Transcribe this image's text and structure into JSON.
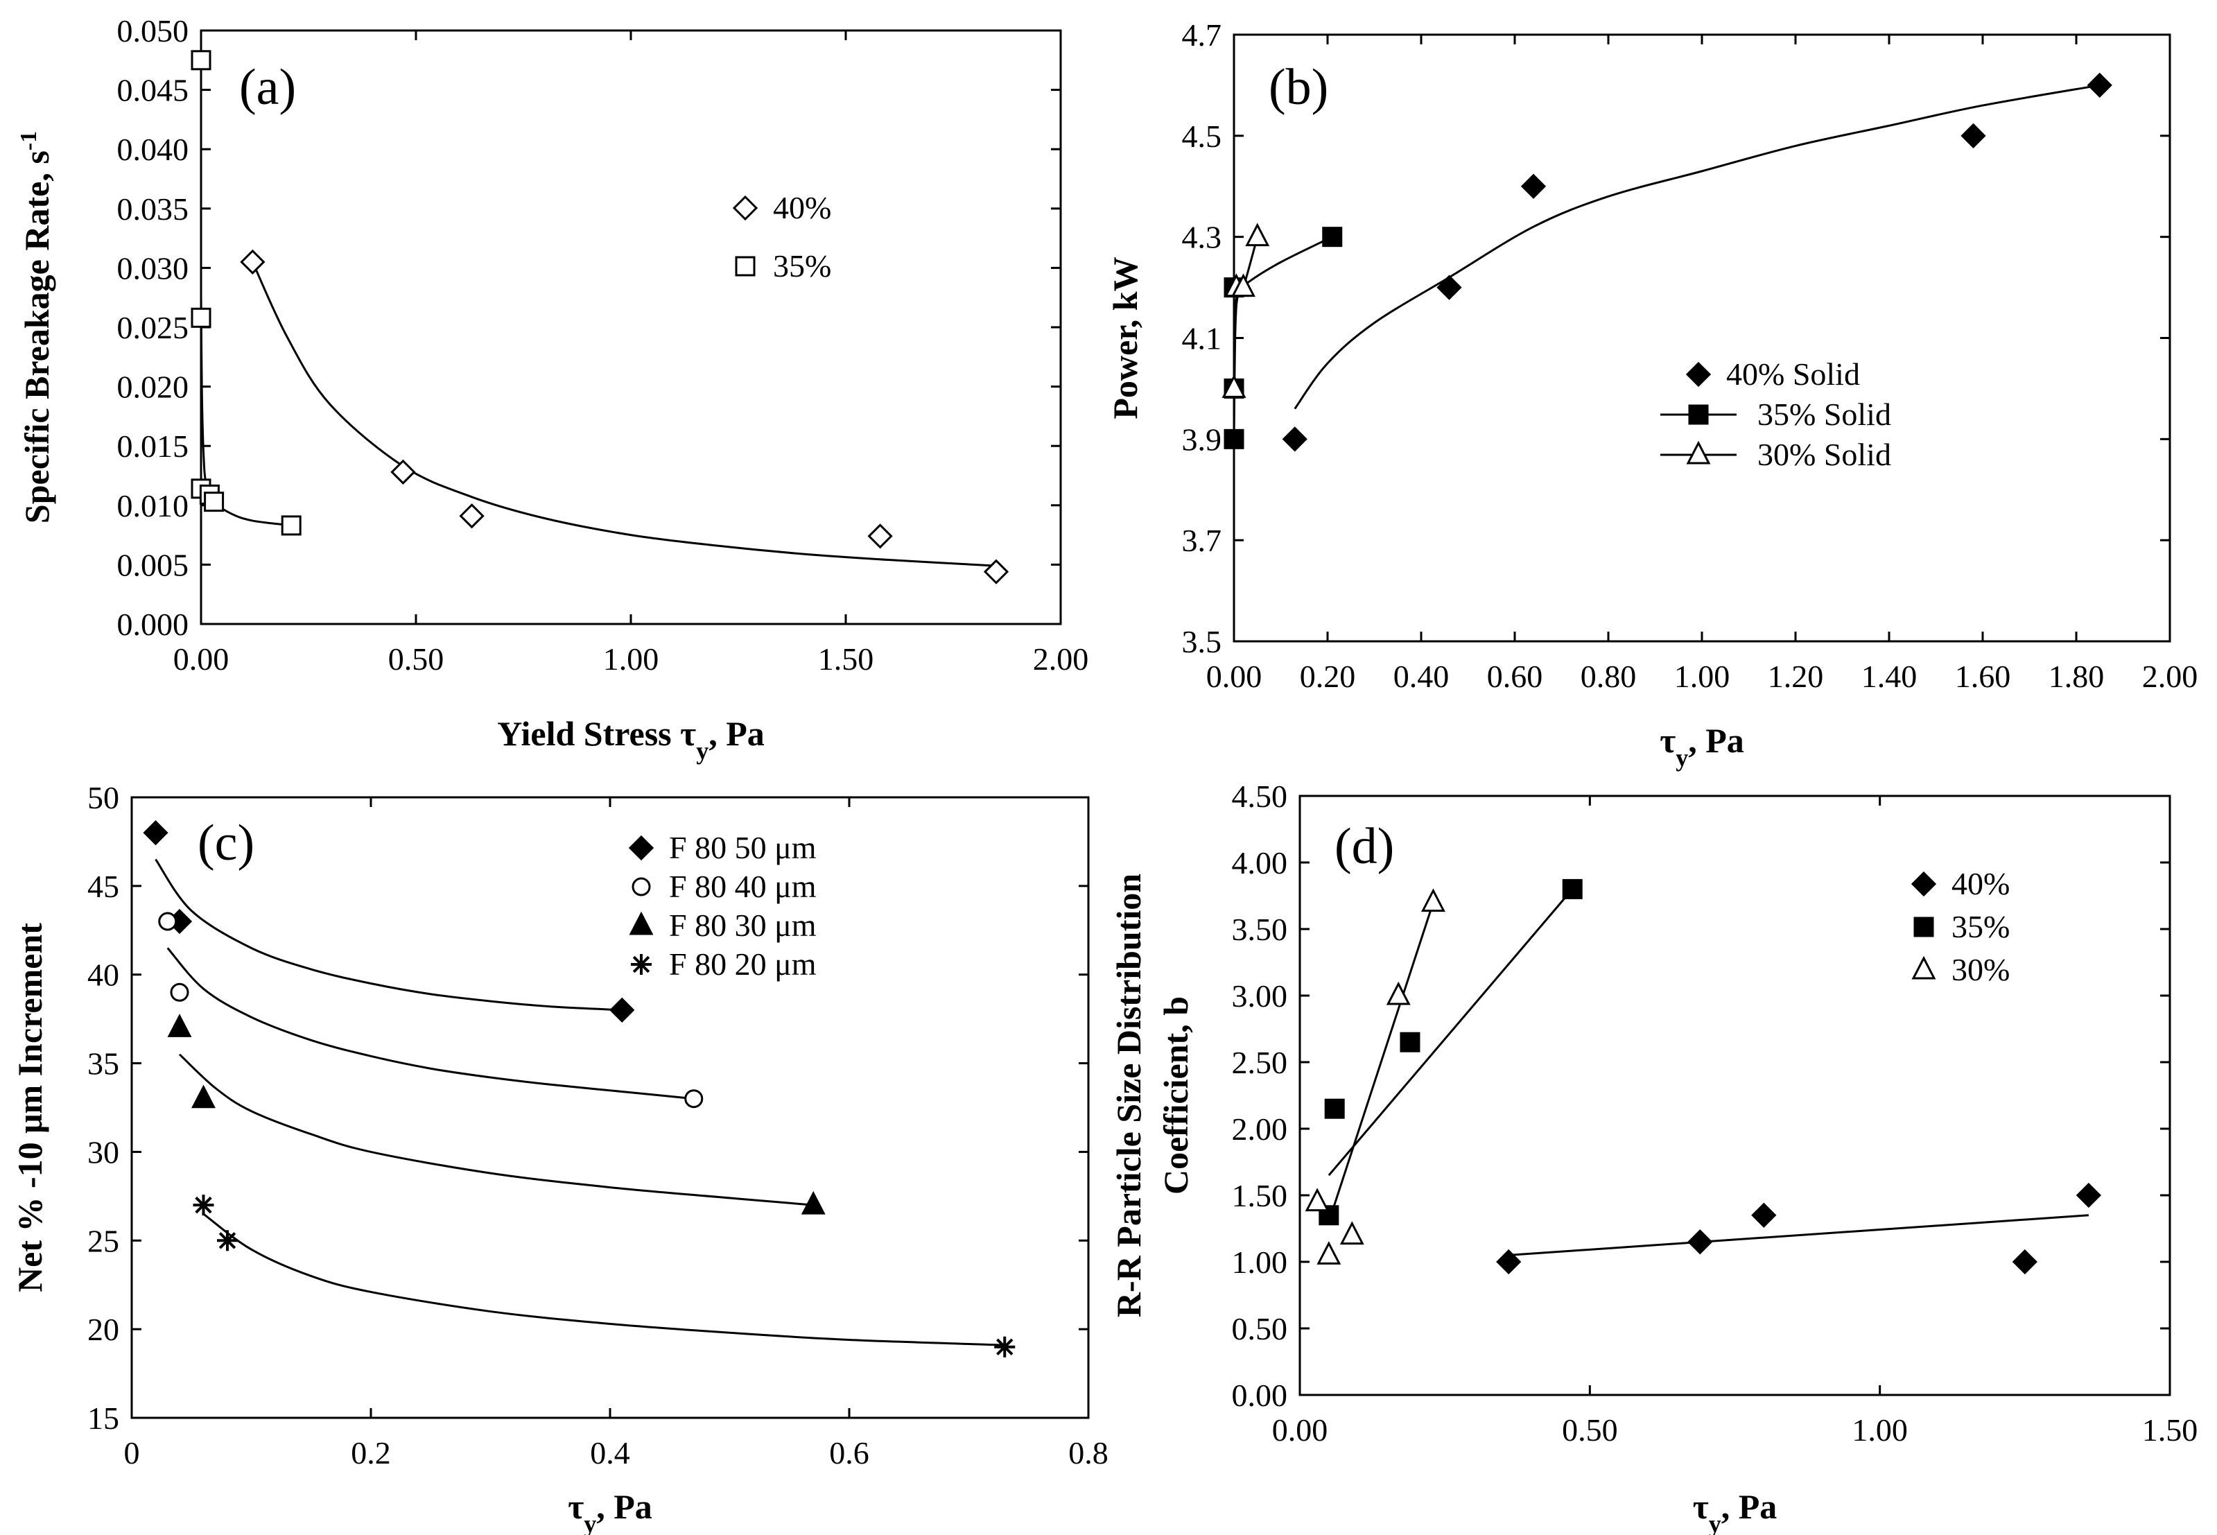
{
  "chart_data": [
    {
      "id": "a",
      "type": "scatter",
      "panel_label": "(a)",
      "xlabel_main": "Yield Stress τ",
      "xlabel_sub": "y",
      "xlabel_tail": ", Pa",
      "ylabel_main": "Specific Breakage Rate, s",
      "ylabel_sup": "-1",
      "xlim": [
        0,
        2.0
      ],
      "ylim": [
        0,
        0.05
      ],
      "xticks": [
        0,
        0.5,
        1.0,
        1.5,
        2.0
      ],
      "xtick_labels": [
        "0.00",
        "0.50",
        "1.00",
        "1.50",
        "2.00"
      ],
      "yticks": [
        0,
        0.005,
        0.01,
        0.015,
        0.02,
        0.025,
        0.03,
        0.035,
        0.04,
        0.045,
        0.05
      ],
      "ytick_labels": [
        "0.000",
        "0.005",
        "0.010",
        "0.015",
        "0.020",
        "0.025",
        "0.030",
        "0.035",
        "0.040",
        "0.045",
        "0.050"
      ],
      "legend_position": "upper-right",
      "series": [
        {
          "name": "40%",
          "marker": "diamond-open",
          "points": [
            [
              0.12,
              0.0305
            ],
            [
              0.47,
              0.0128
            ],
            [
              0.63,
              0.0091
            ],
            [
              1.58,
              0.0074
            ],
            [
              1.85,
              0.0044
            ]
          ],
          "curve": [
            [
              0.12,
              0.0305
            ],
            [
              0.2,
              0.0242
            ],
            [
              0.3,
              0.0185
            ],
            [
              0.47,
              0.0133
            ],
            [
              0.63,
              0.0107
            ],
            [
              0.8,
              0.0089
            ],
            [
              1.0,
              0.0075
            ],
            [
              1.2,
              0.0066
            ],
            [
              1.4,
              0.0059
            ],
            [
              1.6,
              0.0054
            ],
            [
              1.85,
              0.0049
            ]
          ]
        },
        {
          "name": "35%",
          "marker": "square-open",
          "points": [
            [
              0.0,
              0.0475
            ],
            [
              0.0,
              0.0258
            ],
            [
              0.0,
              0.0114
            ],
            [
              0.02,
              0.0109
            ],
            [
              0.03,
              0.0103
            ],
            [
              0.21,
              0.0083
            ]
          ],
          "curve": [
            [
              0.0,
              0.0278
            ],
            [
              0.002,
              0.0195
            ],
            [
              0.006,
              0.0142
            ],
            [
              0.012,
              0.0118
            ],
            [
              0.03,
              0.0103
            ],
            [
              0.07,
              0.0093
            ],
            [
              0.12,
              0.0087
            ],
            [
              0.21,
              0.0083
            ]
          ]
        }
      ]
    },
    {
      "id": "b",
      "type": "scatter",
      "panel_label": "(b)",
      "xlabel_main": "τ",
      "xlabel_sub": "y",
      "xlabel_tail": ", Pa",
      "ylabel_main": "Power, kW",
      "xlim": [
        0,
        2.0
      ],
      "ylim": [
        3.5,
        4.7
      ],
      "xticks": [
        0,
        0.2,
        0.4,
        0.6,
        0.8,
        1.0,
        1.2,
        1.4,
        1.6,
        1.8,
        2.0
      ],
      "xtick_labels": [
        "0.00",
        "0.20",
        "0.40",
        "0.60",
        "0.80",
        "1.00",
        "1.20",
        "1.40",
        "1.60",
        "1.80",
        "2.00"
      ],
      "yticks": [
        3.5,
        3.7,
        3.9,
        4.1,
        4.3,
        4.5,
        4.7
      ],
      "ytick_labels": [
        "3.5",
        "3.7",
        "3.9",
        "4.1",
        "4.3",
        "4.5",
        "4.7"
      ],
      "legend_position": "center-right",
      "series": [
        {
          "name": "40% Solid",
          "marker": "diamond-filled",
          "legend_line": false,
          "points": [
            [
              0.13,
              3.9
            ],
            [
              0.46,
              4.2
            ],
            [
              0.64,
              4.4
            ],
            [
              1.58,
              4.5
            ],
            [
              1.85,
              4.6
            ]
          ],
          "curve": [
            [
              0.13,
              3.96
            ],
            [
              0.2,
              4.05
            ],
            [
              0.3,
              4.13
            ],
            [
              0.46,
              4.22
            ],
            [
              0.64,
              4.32
            ],
            [
              0.8,
              4.38
            ],
            [
              1.0,
              4.43
            ],
            [
              1.2,
              4.48
            ],
            [
              1.4,
              4.52
            ],
            [
              1.6,
              4.56
            ],
            [
              1.85,
              4.6
            ]
          ]
        },
        {
          "name": "35% Solid",
          "marker": "square-filled",
          "legend_line": true,
          "points": [
            [
              0.0,
              3.9
            ],
            [
              0.0,
              4.0
            ],
            [
              0.0,
              4.2
            ],
            [
              0.21,
              4.3
            ]
          ],
          "curve": [
            [
              0.0,
              3.9
            ],
            [
              0.003,
              4.12
            ],
            [
              0.01,
              4.19
            ],
            [
              0.03,
              4.21
            ],
            [
              0.1,
              4.25
            ],
            [
              0.21,
              4.3
            ]
          ]
        },
        {
          "name": "30% Solid",
          "marker": "triangle-open",
          "legend_line": true,
          "points": [
            [
              0.0,
              4.0
            ],
            [
              0.005,
              4.2
            ],
            [
              0.02,
              4.2
            ],
            [
              0.05,
              4.3
            ]
          ],
          "curve": [
            [
              0.0,
              4.0
            ],
            [
              0.004,
              4.17
            ],
            [
              0.02,
              4.2
            ],
            [
              0.05,
              4.3
            ]
          ]
        }
      ]
    },
    {
      "id": "c",
      "type": "scatter",
      "panel_label": "(c)",
      "xlabel_main": "τ",
      "xlabel_sub": "y",
      "xlabel_tail": ", Pa",
      "ylabel_main": "Net % -10 μm Increment",
      "xlim": [
        0,
        0.8
      ],
      "ylim": [
        15,
        50
      ],
      "xticks": [
        0,
        0.2,
        0.4,
        0.6,
        0.8
      ],
      "xtick_labels": [
        "0",
        "0.2",
        "0.4",
        "0.6",
        "0.8"
      ],
      "yticks": [
        15,
        20,
        25,
        30,
        35,
        40,
        45,
        50
      ],
      "ytick_labels": [
        "15",
        "20",
        "25",
        "30",
        "35",
        "40",
        "45",
        "50"
      ],
      "legend_position": "upper-right",
      "series": [
        {
          "name": "F 80 50 μm",
          "marker": "diamond-filled",
          "points": [
            [
              0.02,
              48
            ],
            [
              0.04,
              43
            ],
            [
              0.41,
              38
            ]
          ],
          "curve": [
            [
              0.02,
              46.5
            ],
            [
              0.05,
              43.6
            ],
            [
              0.1,
              41.5
            ],
            [
              0.15,
              40.3
            ],
            [
              0.2,
              39.5
            ],
            [
              0.25,
              38.9
            ],
            [
              0.3,
              38.5
            ],
            [
              0.35,
              38.2
            ],
            [
              0.41,
              38
            ]
          ]
        },
        {
          "name": "F 80 40 μm",
          "marker": "circle-open",
          "points": [
            [
              0.03,
              43
            ],
            [
              0.04,
              39
            ],
            [
              0.47,
              33
            ]
          ],
          "curve": [
            [
              0.03,
              41.5
            ],
            [
              0.06,
              39.2
            ],
            [
              0.1,
              37.6
            ],
            [
              0.15,
              36.3
            ],
            [
              0.2,
              35.4
            ],
            [
              0.25,
              34.7
            ],
            [
              0.3,
              34.2
            ],
            [
              0.35,
              33.8
            ],
            [
              0.41,
              33.4
            ],
            [
              0.47,
              33
            ]
          ]
        },
        {
          "name": "F 80 30 μm",
          "marker": "triangle-filled",
          "points": [
            [
              0.04,
              37
            ],
            [
              0.06,
              33
            ],
            [
              0.57,
              27
            ]
          ],
          "curve": [
            [
              0.04,
              35.5
            ],
            [
              0.07,
              33.6
            ],
            [
              0.1,
              32.3
            ],
            [
              0.15,
              31
            ],
            [
              0.2,
              30
            ],
            [
              0.3,
              28.8
            ],
            [
              0.4,
              28
            ],
            [
              0.5,
              27.4
            ],
            [
              0.57,
              27
            ]
          ]
        },
        {
          "name": "F 80 20 μm",
          "marker": "star",
          "points": [
            [
              0.06,
              27
            ],
            [
              0.08,
              25
            ],
            [
              0.73,
              19
            ]
          ],
          "curve": [
            [
              0.06,
              26.5
            ],
            [
              0.1,
              24.5
            ],
            [
              0.15,
              23
            ],
            [
              0.2,
              22.1
            ],
            [
              0.3,
              21
            ],
            [
              0.4,
              20.3
            ],
            [
              0.5,
              19.8
            ],
            [
              0.6,
              19.4
            ],
            [
              0.73,
              19.1
            ]
          ]
        }
      ]
    },
    {
      "id": "d",
      "type": "scatter",
      "panel_label": "(d)",
      "xlabel_main": "τ",
      "xlabel_sub": "y",
      "xlabel_tail": ", Pa",
      "ylabel_main": "R-R Particle Size Distribution",
      "ylabel_line2": "Coefficient, b",
      "xlim": [
        0,
        1.5
      ],
      "ylim": [
        0,
        4.5
      ],
      "xticks": [
        0,
        0.5,
        1.0,
        1.5
      ],
      "xtick_labels": [
        "0.00",
        "0.50",
        "1.00",
        "1.50"
      ],
      "yticks": [
        0,
        0.5,
        1.0,
        1.5,
        2.0,
        2.5,
        3.0,
        3.5,
        4.0,
        4.5
      ],
      "ytick_labels": [
        "0.00",
        "0.50",
        "1.00",
        "1.50",
        "2.00",
        "2.50",
        "3.00",
        "3.50",
        "4.00",
        "4.50"
      ],
      "legend_position": "upper-right",
      "series": [
        {
          "name": "40%",
          "marker": "diamond-filled",
          "points": [
            [
              0.36,
              1.0
            ],
            [
              0.69,
              1.15
            ],
            [
              0.8,
              1.35
            ],
            [
              1.25,
              1.0
            ],
            [
              1.36,
              1.5
            ]
          ],
          "curve": [
            [
              0.36,
              1.05
            ],
            [
              1.36,
              1.35
            ]
          ]
        },
        {
          "name": "35%",
          "marker": "square-filled",
          "points": [
            [
              0.05,
              1.35
            ],
            [
              0.06,
              2.15
            ],
            [
              0.19,
              2.65
            ],
            [
              0.47,
              3.8
            ]
          ],
          "curve": [
            [
              0.05,
              1.65
            ],
            [
              0.47,
              3.8
            ]
          ]
        },
        {
          "name": "30%",
          "marker": "triangle-open",
          "points": [
            [
              0.03,
              1.45
            ],
            [
              0.05,
              1.05
            ],
            [
              0.09,
              1.2
            ],
            [
              0.17,
              3.0
            ],
            [
              0.23,
              3.7
            ]
          ],
          "curve": [
            [
              0.05,
              1.3
            ],
            [
              0.23,
              3.7
            ]
          ]
        }
      ]
    }
  ]
}
